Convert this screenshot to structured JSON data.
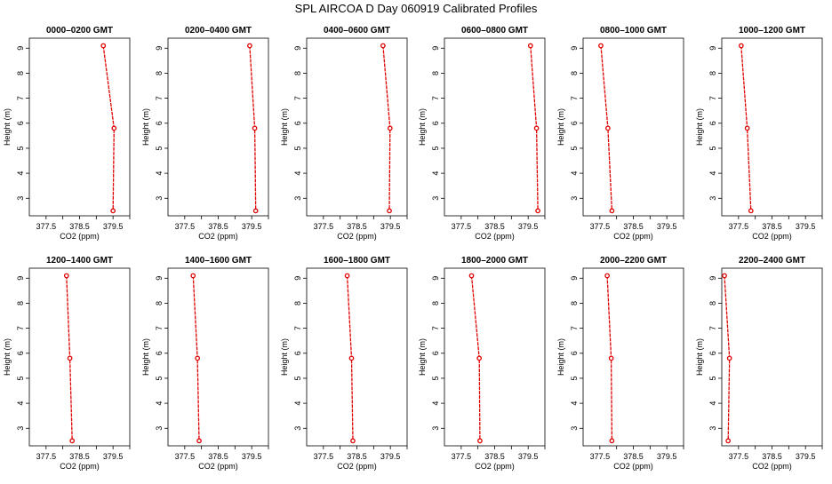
{
  "title": "SPL AIRCOA D  Day 060919  Calibrated Profiles",
  "chart_data": {
    "type": "line",
    "title": "SPL AIRCOA D  Day 060919  Calibrated Profiles",
    "xlabel": "CO2 (ppm)",
    "ylabel": "Height (m)",
    "xlim": [
      377.0,
      380.0
    ],
    "ylim": [
      2.3,
      9.4
    ],
    "x_ticks": [
      377.5,
      378,
      378.5,
      379,
      379.5,
      380
    ],
    "x_tick_labels": [
      "377.5",
      "",
      "378.5",
      "",
      "379.5",
      ""
    ],
    "y_ticks": [
      3,
      4,
      5,
      6,
      7,
      8,
      9
    ],
    "y_tick_labels": [
      "3",
      "4",
      "5",
      "6",
      "7",
      "8",
      "9"
    ],
    "heights": [
      9.1,
      5.8,
      2.5
    ],
    "color": "#e00000",
    "grid": false,
    "panels": [
      {
        "title": "0000–0200 GMT",
        "co2": [
          379.21,
          379.53,
          379.5
        ]
      },
      {
        "title": "0200–0400 GMT",
        "co2": [
          379.44,
          379.59,
          379.62
        ]
      },
      {
        "title": "0400–0600 GMT",
        "co2": [
          379.28,
          379.49,
          379.47
        ]
      },
      {
        "title": "0600–0800 GMT",
        "co2": [
          379.57,
          379.75,
          379.79
        ]
      },
      {
        "title": "0800–1000 GMT",
        "co2": [
          377.53,
          377.74,
          377.86
        ]
      },
      {
        "title": "1000–1200 GMT",
        "co2": [
          377.58,
          377.76,
          377.87
        ]
      },
      {
        "title": "1200–1400 GMT",
        "co2": [
          378.11,
          378.21,
          378.28
        ]
      },
      {
        "title": "1400–1600 GMT",
        "co2": [
          377.75,
          377.88,
          377.93
        ]
      },
      {
        "title": "1600–1800 GMT",
        "co2": [
          378.21,
          378.34,
          378.38
        ]
      },
      {
        "title": "1800–2000 GMT",
        "co2": [
          377.81,
          378.04,
          378.06
        ]
      },
      {
        "title": "2000–2200 GMT",
        "co2": [
          377.72,
          377.84,
          377.86
        ]
      },
      {
        "title": "2200–2400 GMT",
        "co2": [
          377.08,
          377.23,
          377.19
        ]
      }
    ]
  }
}
